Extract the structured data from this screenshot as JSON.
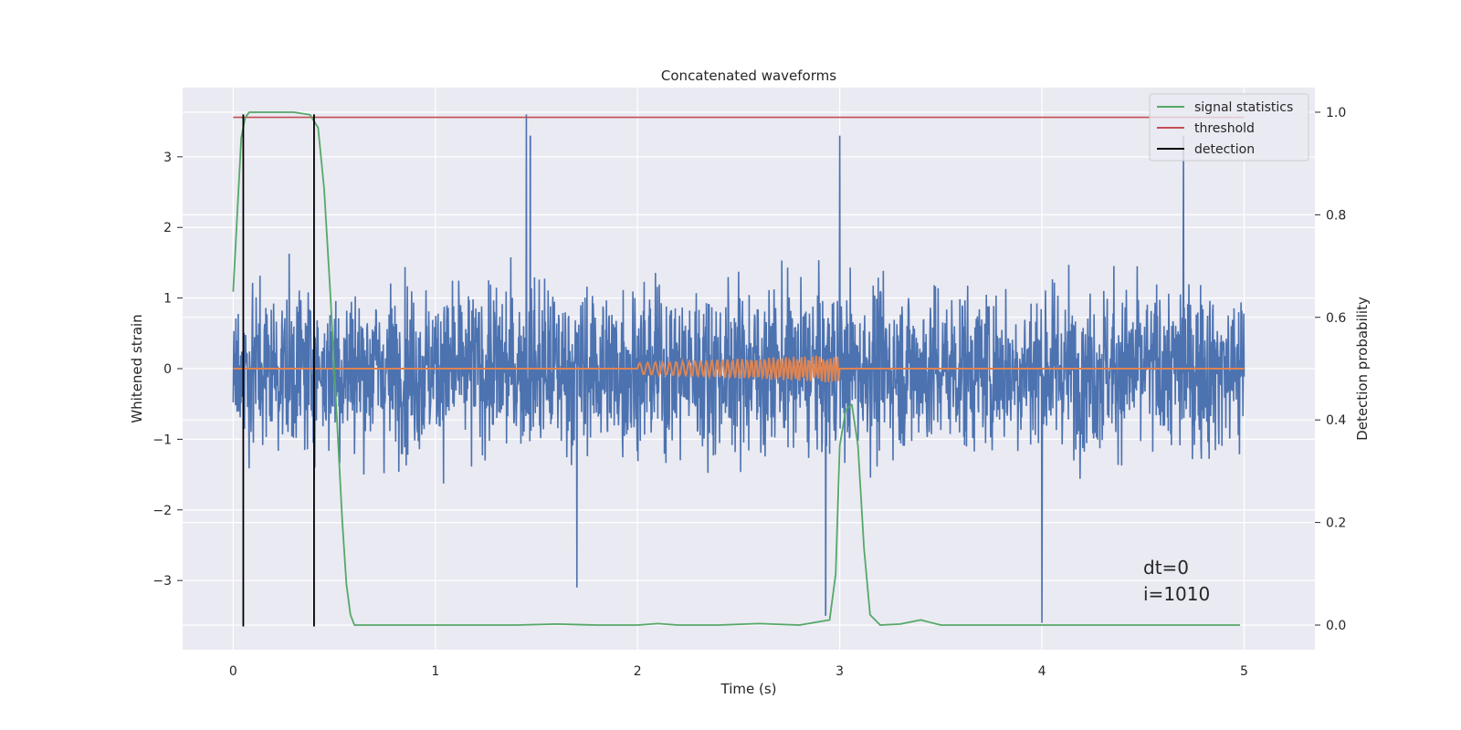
{
  "chart_data": {
    "type": "line",
    "title": "Concatenated waveforms",
    "xlabel": "Time (s)",
    "ylabel_left": "Whitened strain",
    "ylabel_right": "Detection probability",
    "xlim": [
      -0.25,
      5.35
    ],
    "ylim_left": [
      -3.98,
      3.98
    ],
    "ylim_right": [
      -0.048,
      1.048
    ],
    "x_ticks": [
      0,
      1,
      2,
      3,
      4,
      5
    ],
    "x_tick_labels": [
      "0",
      "1",
      "2",
      "3",
      "4",
      "5"
    ],
    "y_ticks_left": [
      -3,
      -2,
      -1,
      0,
      1,
      2,
      3
    ],
    "y_tick_labels_left": [
      "−3",
      "−2",
      "−1",
      "0",
      "1",
      "2",
      "3"
    ],
    "y_ticks_right": [
      0.0,
      0.2,
      0.4,
      0.6,
      0.8,
      1.0
    ],
    "y_tick_labels_right": [
      "0.0",
      "0.2",
      "0.4",
      "0.6",
      "0.8",
      "1.0"
    ],
    "grid": true,
    "legend_position": "top-right",
    "legend": [
      {
        "label": "signal statistics",
        "color": "#55a868"
      },
      {
        "label": "threshold",
        "color": "#c44e52"
      },
      {
        "label": "detection",
        "color": "#000000"
      }
    ],
    "noise_series": {
      "axis": "left",
      "color": "#4c72b0",
      "x_range": [
        0,
        5
      ],
      "amplitude_approx": 1.5,
      "peak_values": [
        {
          "x": 1.45,
          "y": 3.6
        },
        {
          "x": 1.47,
          "y": 3.3
        },
        {
          "x": 3.0,
          "y": 3.3
        },
        {
          "x": 4.7,
          "y": 3.3
        },
        {
          "x": 4.0,
          "y": -3.6
        },
        {
          "x": 2.93,
          "y": -3.5
        },
        {
          "x": 1.7,
          "y": -3.1
        }
      ]
    },
    "injected_waveform": {
      "axis": "left",
      "color": "#dd8452",
      "start": 2.0,
      "end": 3.0,
      "amplitude_start": 0.08,
      "amplitude_end": 0.2
    },
    "signal_statistics": {
      "axis": "right",
      "color": "#55a868",
      "x": [
        0.0,
        0.02,
        0.04,
        0.06,
        0.08,
        0.1,
        0.2,
        0.3,
        0.38,
        0.42,
        0.45,
        0.48,
        0.5,
        0.52,
        0.54,
        0.56,
        0.58,
        0.6,
        0.8,
        1.0,
        1.2,
        1.4,
        1.6,
        1.8,
        2.0,
        2.1,
        2.2,
        2.4,
        2.6,
        2.8,
        2.95,
        2.98,
        3.0,
        3.03,
        3.06,
        3.09,
        3.12,
        3.15,
        3.2,
        3.3,
        3.4,
        3.5,
        4.0,
        4.5,
        4.98
      ],
      "y": [
        0.65,
        0.8,
        0.95,
        0.99,
        1.0,
        1.0,
        1.0,
        1.0,
        0.995,
        0.97,
        0.85,
        0.65,
        0.5,
        0.35,
        0.2,
        0.08,
        0.02,
        0.0,
        0.0,
        0.0,
        0.0,
        0.0,
        0.002,
        0.0,
        0.0,
        0.003,
        0.0,
        0.0,
        0.003,
        0.0,
        0.01,
        0.1,
        0.35,
        0.42,
        0.43,
        0.35,
        0.15,
        0.02,
        0.0,
        0.002,
        0.01,
        0.0,
        0.0,
        0.0,
        0.0
      ]
    },
    "threshold": {
      "axis": "right",
      "value": 0.99,
      "x_range": [
        0,
        5
      ],
      "color": "#c44e52"
    },
    "detections": {
      "axis": "left",
      "x": [
        0.05,
        0.4
      ],
      "y_range": [
        -3.65,
        3.6
      ],
      "color": "#000000"
    },
    "annotations": [
      "dt=0",
      "i=1010"
    ]
  }
}
